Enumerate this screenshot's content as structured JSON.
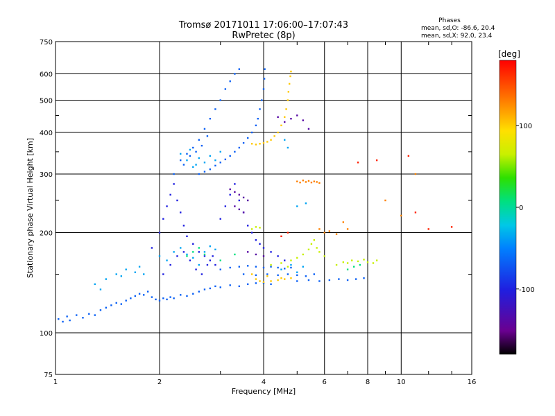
{
  "chart_data": {
    "type": "scatter",
    "title": "Tromsø 20171011 17:06:00–17:07:43",
    "subtitle": "RwPretec (8p)",
    "xlabel": "Frequency [MHz]",
    "ylabel": "Stationary phase Virtual Height [km]",
    "x_scale": "log",
    "y_scale": "log",
    "xlim": [
      1,
      16
    ],
    "ylim": [
      75,
      750
    ],
    "x_ticks": [
      1,
      2,
      4,
      6,
      8,
      10,
      16
    ],
    "y_ticks": [
      75,
      100,
      200,
      300,
      400,
      500,
      600,
      750
    ],
    "grid": true,
    "phases": {
      "title": "Phases",
      "line_o": "mean, sd,O:  -86.6, 20.4",
      "line_x": "mean, sd,X:  92.0, 23.4"
    },
    "colorbar": {
      "label": "[deg]",
      "range": [
        -180,
        180
      ],
      "ticks": [
        100,
        0,
        -100
      ],
      "colormap": "rainbow (black-purple-blue-cyan-green-yellow-orange-red)"
    },
    "series": [
      {
        "phase": -90,
        "points": [
          [
            1.02,
            110
          ],
          [
            1.05,
            108
          ],
          [
            1.08,
            112
          ],
          [
            1.1,
            109
          ],
          [
            1.15,
            113
          ],
          [
            1.2,
            111
          ],
          [
            1.25,
            114
          ],
          [
            1.3,
            113
          ],
          [
            1.35,
            117
          ],
          [
            1.4,
            119
          ],
          [
            1.45,
            121
          ],
          [
            1.5,
            123
          ],
          [
            1.55,
            122
          ],
          [
            1.6,
            125
          ],
          [
            1.65,
            127
          ],
          [
            1.7,
            129
          ],
          [
            1.75,
            131
          ],
          [
            1.8,
            130
          ],
          [
            1.85,
            133
          ],
          [
            1.9,
            128
          ],
          [
            1.95,
            126
          ],
          [
            2.0,
            125
          ],
          [
            2.05,
            127
          ],
          [
            2.1,
            126
          ],
          [
            2.15,
            128
          ],
          [
            2.2,
            127
          ],
          [
            2.3,
            130
          ],
          [
            2.4,
            129
          ],
          [
            2.5,
            131
          ],
          [
            2.6,
            133
          ],
          [
            2.7,
            135
          ],
          [
            2.8,
            136
          ],
          [
            2.9,
            138
          ],
          [
            3.0,
            137
          ],
          [
            3.2,
            139
          ],
          [
            3.4,
            138
          ],
          [
            3.6,
            140
          ],
          [
            3.8,
            141
          ],
          [
            4.0,
            141
          ],
          [
            4.2,
            140
          ],
          [
            3.0,
            155
          ],
          [
            3.2,
            157
          ],
          [
            3.4,
            158
          ],
          [
            3.6,
            159
          ],
          [
            3.8,
            158
          ],
          [
            4.0,
            157
          ],
          [
            4.2,
            158
          ],
          [
            4.4,
            157
          ],
          [
            4.6,
            156
          ],
          [
            4.8,
            157
          ],
          [
            3.5,
            150
          ],
          [
            3.8,
            149
          ],
          [
            4.1,
            150
          ],
          [
            4.4,
            149
          ],
          [
            4.7,
            150
          ],
          [
            5.0,
            149
          ],
          [
            5.3,
            148
          ],
          [
            5.6,
            150
          ],
          [
            5.0,
            143
          ],
          [
            5.4,
            144
          ],
          [
            5.8,
            143
          ],
          [
            6.2,
            144
          ],
          [
            6.6,
            145
          ],
          [
            7.0,
            144
          ],
          [
            7.4,
            145
          ],
          [
            7.8,
            146
          ],
          [
            2.6,
            300
          ],
          [
            2.7,
            305
          ],
          [
            2.8,
            310
          ],
          [
            2.9,
            318
          ],
          [
            3.0,
            325
          ],
          [
            3.1,
            332
          ],
          [
            3.2,
            340
          ],
          [
            3.3,
            350
          ],
          [
            3.4,
            360
          ],
          [
            3.5,
            372
          ],
          [
            3.6,
            385
          ],
          [
            3.7,
            400
          ],
          [
            3.8,
            420
          ],
          [
            3.85,
            440
          ],
          [
            3.9,
            470
          ],
          [
            3.95,
            500
          ],
          [
            4.0,
            540
          ],
          [
            4.02,
            580
          ],
          [
            4.03,
            620
          ],
          [
            2.3,
            330
          ],
          [
            2.4,
            345
          ],
          [
            2.5,
            360
          ],
          [
            2.6,
            380
          ],
          [
            2.7,
            410
          ],
          [
            2.8,
            440
          ],
          [
            2.9,
            470
          ],
          [
            3.0,
            500
          ],
          [
            3.1,
            540
          ],
          [
            3.2,
            570
          ],
          [
            3.3,
            600
          ],
          [
            3.4,
            620
          ],
          [
            2.2,
            300
          ],
          [
            2.35,
            320
          ],
          [
            2.45,
            340
          ],
          [
            2.55,
            350
          ],
          [
            2.65,
            365
          ],
          [
            2.75,
            390
          ]
        ]
      },
      {
        "phase": -110,
        "points": [
          [
            1.9,
            180
          ],
          [
            2.0,
            200
          ],
          [
            2.05,
            220
          ],
          [
            2.1,
            240
          ],
          [
            2.15,
            260
          ],
          [
            2.2,
            280
          ],
          [
            2.25,
            250
          ],
          [
            2.3,
            230
          ],
          [
            2.35,
            210
          ],
          [
            2.4,
            195
          ],
          [
            2.5,
            185
          ],
          [
            2.6,
            175
          ],
          [
            2.7,
            170
          ],
          [
            2.8,
            165
          ],
          [
            2.9,
            160
          ],
          [
            3.0,
            220
          ],
          [
            3.1,
            240
          ],
          [
            3.2,
            260
          ],
          [
            3.3,
            280
          ],
          [
            3.4,
            250
          ],
          [
            3.5,
            230
          ],
          [
            3.6,
            210
          ],
          [
            3.7,
            200
          ],
          [
            3.8,
            190
          ],
          [
            3.9,
            185
          ],
          [
            4.0,
            180
          ],
          [
            4.2,
            175
          ],
          [
            4.4,
            170
          ],
          [
            4.6,
            165
          ],
          [
            2.05,
            150
          ],
          [
            2.15,
            160
          ],
          [
            2.25,
            170
          ],
          [
            2.35,
            175
          ],
          [
            2.45,
            165
          ],
          [
            2.55,
            155
          ],
          [
            2.65,
            150
          ],
          [
            2.75,
            160
          ],
          [
            2.85,
            170
          ]
        ]
      },
      {
        "phase": -140,
        "points": [
          [
            3.2,
            270
          ],
          [
            3.3,
            265
          ],
          [
            3.4,
            260
          ],
          [
            3.5,
            255
          ],
          [
            3.6,
            250
          ],
          [
            3.3,
            240
          ],
          [
            3.4,
            235
          ],
          [
            3.5,
            230
          ],
          [
            4.4,
            445
          ],
          [
            4.6,
            430
          ],
          [
            4.8,
            440
          ],
          [
            5.0,
            450
          ],
          [
            5.2,
            435
          ],
          [
            5.4,
            410
          ],
          [
            3.6,
            175
          ],
          [
            3.8,
            172
          ],
          [
            4.0,
            170
          ]
        ]
      },
      {
        "phase": -60,
        "points": [
          [
            1.3,
            140
          ],
          [
            1.35,
            135
          ],
          [
            1.4,
            145
          ],
          [
            1.5,
            150
          ],
          [
            1.55,
            148
          ],
          [
            1.6,
            155
          ],
          [
            1.7,
            152
          ],
          [
            1.75,
            158
          ],
          [
            1.8,
            150
          ],
          [
            2.0,
            170
          ],
          [
            2.1,
            165
          ],
          [
            2.2,
            175
          ],
          [
            2.3,
            180
          ],
          [
            2.4,
            172
          ],
          [
            2.5,
            168
          ],
          [
            2.6,
            160
          ],
          [
            2.7,
            175
          ],
          [
            2.8,
            182
          ],
          [
            2.9,
            178
          ],
          [
            2.4,
            330
          ],
          [
            2.5,
            315
          ],
          [
            2.6,
            335
          ],
          [
            2.7,
            325
          ],
          [
            2.8,
            340
          ],
          [
            2.9,
            330
          ],
          [
            3.0,
            350
          ],
          [
            2.3,
            345
          ],
          [
            2.45,
            355
          ],
          [
            2.55,
            320
          ],
          [
            4.5,
            155
          ],
          [
            4.8,
            160
          ],
          [
            5.0,
            152
          ],
          [
            5.2,
            158
          ],
          [
            4.6,
            380
          ],
          [
            4.7,
            360
          ],
          [
            5.0,
            240
          ],
          [
            5.3,
            245
          ]
        ]
      },
      {
        "phase": 110,
        "points": [
          [
            3.7,
            370
          ],
          [
            3.8,
            368
          ],
          [
            3.9,
            370
          ],
          [
            4.0,
            372
          ],
          [
            4.1,
            375
          ],
          [
            4.2,
            380
          ],
          [
            4.3,
            390
          ],
          [
            4.4,
            400
          ],
          [
            4.5,
            420
          ],
          [
            4.6,
            445
          ],
          [
            4.65,
            470
          ],
          [
            4.7,
            500
          ],
          [
            4.72,
            530
          ],
          [
            4.75,
            560
          ],
          [
            4.78,
            590
          ],
          [
            4.8,
            610
          ],
          [
            3.8,
            145
          ],
          [
            3.9,
            143
          ],
          [
            4.0,
            142
          ],
          [
            4.2,
            143
          ],
          [
            4.4,
            144
          ],
          [
            4.6,
            145
          ],
          [
            4.8,
            146
          ],
          [
            3.7,
            150
          ],
          [
            4.1,
            148
          ],
          [
            4.5,
            146
          ]
        ]
      },
      {
        "phase": 60,
        "points": [
          [
            4.8,
            165
          ],
          [
            5.0,
            168
          ],
          [
            5.2,
            172
          ],
          [
            5.4,
            178
          ],
          [
            5.5,
            185
          ],
          [
            5.6,
            190
          ],
          [
            5.7,
            180
          ],
          [
            5.8,
            175
          ],
          [
            6.0,
            170
          ],
          [
            6.5,
            160
          ],
          [
            6.8,
            163
          ],
          [
            7.0,
            162
          ],
          [
            7.2,
            165
          ],
          [
            7.5,
            164
          ],
          [
            7.8,
            166
          ],
          [
            8.0,
            163
          ],
          [
            8.3,
            162
          ],
          [
            8.5,
            165
          ],
          [
            4.2,
            160
          ],
          [
            4.5,
            162
          ],
          [
            4.7,
            158
          ],
          [
            3.7,
            205
          ],
          [
            3.8,
            208
          ],
          [
            3.9,
            207
          ]
        ]
      },
      {
        "phase": 140,
        "points": [
          [
            5.0,
            285
          ],
          [
            5.1,
            283
          ],
          [
            5.2,
            287
          ],
          [
            5.3,
            284
          ],
          [
            5.4,
            286
          ],
          [
            5.5,
            283
          ],
          [
            5.6,
            285
          ],
          [
            5.7,
            284
          ],
          [
            5.8,
            282
          ],
          [
            5.8,
            205
          ],
          [
            6.0,
            200
          ],
          [
            6.2,
            202
          ],
          [
            6.5,
            198
          ],
          [
            6.8,
            215
          ],
          [
            7.0,
            205
          ],
          [
            9.0,
            250
          ],
          [
            10.0,
            225
          ],
          [
            11.0,
            300
          ]
        ]
      },
      {
        "phase": 170,
        "points": [
          [
            4.5,
            195
          ],
          [
            4.7,
            200
          ],
          [
            7.5,
            325
          ],
          [
            8.5,
            330
          ],
          [
            10.5,
            340
          ],
          [
            11.0,
            230
          ],
          [
            12.0,
            205
          ],
          [
            14.0,
            208
          ]
        ]
      },
      {
        "phase": 0,
        "points": [
          [
            2.4,
            170
          ],
          [
            2.5,
            175
          ],
          [
            2.6,
            180
          ],
          [
            2.7,
            172
          ],
          [
            3.0,
            165
          ],
          [
            3.3,
            172
          ],
          [
            7.0,
            155
          ],
          [
            7.3,
            158
          ],
          [
            7.6,
            160
          ]
        ]
      }
    ]
  }
}
